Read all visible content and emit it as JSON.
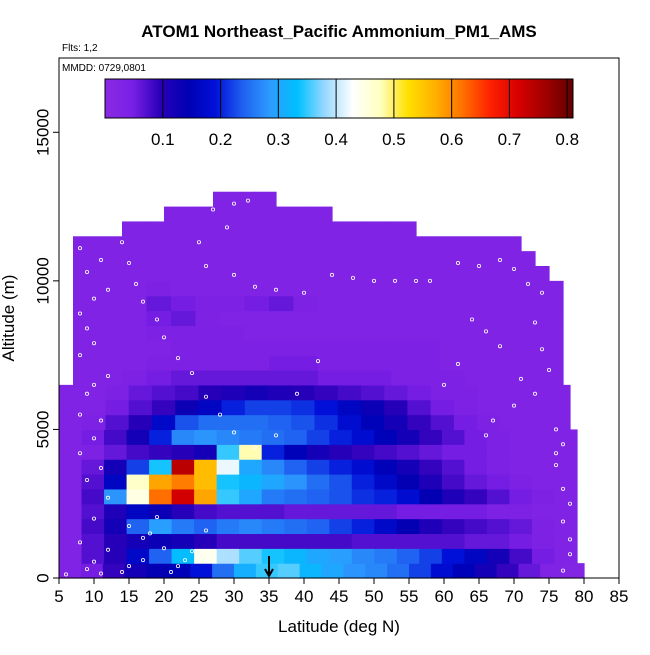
{
  "chart_data": {
    "type": "heatmap",
    "title": "ATOM1 Northeast_Pacific Ammonium_PM1_AMS",
    "subtitle_flights": "Flts: 1,2",
    "subtitle_dates": "MMDD: 0729,0801",
    "xlabel": "Latitude (deg N)",
    "ylabel": "Altitude (m)",
    "xlim": [
      5,
      85
    ],
    "ylim": [
      0,
      17500
    ],
    "x_ticks": [
      "5",
      "10",
      "15",
      "20",
      "25",
      "30",
      "35",
      "40",
      "45",
      "50",
      "55",
      "60",
      "65",
      "70",
      "75",
      "80",
      "85"
    ],
    "y_ticks": [
      "0",
      "5000",
      "10000",
      "15000"
    ],
    "colorbar": {
      "range": [
        0,
        0.81
      ],
      "tick_labels": [
        "0.1",
        "0.2",
        "0.3",
        "0.4",
        "0.5",
        "0.6",
        "0.7",
        "0.8"
      ],
      "stops": [
        "#8a2be2",
        "#7a1fe6",
        "#2a00b8",
        "#0000b4",
        "#0010d8",
        "#2060f0",
        "#2c9cff",
        "#00c0ff",
        "#9ad8ff",
        "#ffffff",
        "#ffffc0",
        "#ffe000",
        "#ffb000",
        "#ff7000",
        "#ff2000",
        "#d80000",
        "#a00000",
        "#600000"
      ]
    },
    "grid": false,
    "arrow_marker_latitude": 35,
    "cells": [
      {
        "lat_start": 5,
        "lat_end": 80,
        "alt_start": 0,
        "alt_end": 500,
        "values": [
          0.03,
          0.05,
          0.09,
          0.12,
          0.14,
          0.15,
          0.19,
          0.25,
          0.31,
          0.35,
          0.36,
          0.32,
          0.3,
          0.28,
          0.27,
          0.25,
          0.22,
          0.18,
          0.15,
          0.12,
          0.09,
          0.06,
          0.03,
          0.02
        ]
      },
      {
        "lat_start": 5,
        "lat_end": 79,
        "alt_start": 500,
        "alt_end": 1000,
        "values": [
          0.03,
          0.07,
          0.1,
          0.17,
          0.24,
          0.33,
          0.44,
          0.39,
          0.36,
          0.34,
          0.32,
          0.3,
          0.29,
          0.27,
          0.26,
          0.24,
          0.22,
          0.19,
          0.16,
          0.12,
          0.08,
          0.05,
          0.03
        ]
      },
      {
        "lat_start": 5,
        "lat_end": 79,
        "alt_start": 1000,
        "alt_end": 1500,
        "values": [
          0.03,
          0.07,
          0.1,
          0.12,
          0.13,
          0.12,
          0.1,
          0.08,
          0.08,
          0.08,
          0.08,
          0.08,
          0.08,
          0.07,
          0.07,
          0.07,
          0.07,
          0.07,
          0.06,
          0.06,
          0.05,
          0.04,
          0.03
        ]
      },
      {
        "lat_start": 5,
        "lat_end": 79,
        "alt_start": 1500,
        "alt_end": 2000,
        "values": [
          0.03,
          0.08,
          0.12,
          0.24,
          0.29,
          0.26,
          0.24,
          0.26,
          0.27,
          0.26,
          0.25,
          0.24,
          0.22,
          0.2,
          0.17,
          0.14,
          0.11,
          0.09,
          0.08,
          0.07,
          0.06,
          0.04,
          0.03
        ]
      },
      {
        "lat_start": 5,
        "lat_end": 79,
        "alt_start": 2000,
        "alt_end": 2500,
        "values": [
          0.03,
          0.07,
          0.11,
          0.16,
          0.13,
          0.1,
          0.08,
          0.07,
          0.07,
          0.07,
          0.06,
          0.06,
          0.06,
          0.06,
          0.06,
          0.05,
          0.05,
          0.05,
          0.05,
          0.04,
          0.04,
          0.03,
          0.03
        ]
      },
      {
        "lat_start": 5,
        "lat_end": 79,
        "alt_start": 2500,
        "alt_end": 3000,
        "values": [
          0.03,
          0.08,
          0.28,
          0.45,
          0.62,
          0.72,
          0.58,
          0.35,
          0.3,
          0.26,
          0.25,
          0.24,
          0.23,
          0.21,
          0.2,
          0.18,
          0.14,
          0.11,
          0.09,
          0.07,
          0.05,
          0.04,
          0.03
        ]
      },
      {
        "lat_start": 5,
        "lat_end": 79,
        "alt_start": 3000,
        "alt_end": 3500,
        "values": [
          0.03,
          0.07,
          0.16,
          0.47,
          0.58,
          0.61,
          0.56,
          0.34,
          0.32,
          0.3,
          0.28,
          0.25,
          0.23,
          0.2,
          0.17,
          0.14,
          0.11,
          0.08,
          0.06,
          0.05,
          0.04,
          0.03,
          0.03
        ]
      },
      {
        "lat_start": 5,
        "lat_end": 79,
        "alt_start": 3500,
        "alt_end": 4000,
        "values": [
          0.03,
          0.06,
          0.12,
          0.22,
          0.34,
          0.74,
          0.56,
          0.42,
          0.3,
          0.27,
          0.24,
          0.22,
          0.2,
          0.18,
          0.15,
          0.12,
          0.09,
          0.07,
          0.05,
          0.04,
          0.03,
          0.03,
          0.03
        ]
      },
      {
        "lat_start": 5,
        "lat_end": 79,
        "alt_start": 4000,
        "alt_end": 4500,
        "values": [
          0.03,
          0.04,
          0.06,
          0.08,
          0.09,
          0.1,
          0.12,
          0.35,
          0.48,
          0.2,
          0.15,
          0.12,
          0.1,
          0.09,
          0.08,
          0.07,
          0.06,
          0.05,
          0.05,
          0.04,
          0.03,
          0.03,
          0.03
        ]
      },
      {
        "lat_start": 5,
        "lat_end": 79,
        "alt_start": 4500,
        "alt_end": 5000,
        "values": [
          0.03,
          0.05,
          0.08,
          0.12,
          0.2,
          0.27,
          0.28,
          0.27,
          0.26,
          0.25,
          0.24,
          0.22,
          0.2,
          0.18,
          0.15,
          0.12,
          0.09,
          0.07,
          0.05,
          0.04,
          0.03,
          0.03,
          0.03
        ]
      },
      {
        "lat_start": 5,
        "lat_end": 78,
        "alt_start": 5000,
        "alt_end": 5500,
        "values": [
          0.03,
          0.04,
          0.07,
          0.1,
          0.17,
          0.23,
          0.25,
          0.25,
          0.25,
          0.24,
          0.23,
          0.21,
          0.18,
          0.15,
          0.12,
          0.09,
          0.07,
          0.05,
          0.04,
          0.03,
          0.03,
          0.03
        ]
      },
      {
        "lat_start": 5,
        "lat_end": 78,
        "alt_start": 5500,
        "alt_end": 6000,
        "values": [
          0.03,
          0.03,
          0.05,
          0.07,
          0.09,
          0.13,
          0.16,
          0.2,
          0.22,
          0.22,
          0.21,
          0.19,
          0.16,
          0.13,
          0.1,
          0.07,
          0.05,
          0.04,
          0.03,
          0.03,
          0.03,
          0.03
        ]
      },
      {
        "lat_start": 5,
        "lat_end": 78,
        "alt_start": 6000,
        "alt_end": 6500,
        "values": [
          0.03,
          0.03,
          0.04,
          0.06,
          0.07,
          0.08,
          0.1,
          0.11,
          0.12,
          0.11,
          0.1,
          0.09,
          0.08,
          0.07,
          0.06,
          0.05,
          0.04,
          0.04,
          0.03,
          0.03,
          0.03,
          0.03
        ]
      },
      {
        "lat_start": 7,
        "lat_end": 77,
        "alt_start": 6500,
        "alt_end": 7000,
        "values": [
          0.03,
          0.03,
          0.04,
          0.05,
          0.06,
          0.06,
          0.06,
          0.06,
          0.06,
          0.06,
          0.05,
          0.05,
          0.05,
          0.04,
          0.04,
          0.04,
          0.03,
          0.03,
          0.03,
          0.03
        ]
      },
      {
        "lat_start": 7,
        "lat_end": 77,
        "alt_start": 7000,
        "alt_end": 7500,
        "values": [
          0.03,
          0.03,
          0.03,
          0.04,
          0.04,
          0.04,
          0.04,
          0.04,
          0.05,
          0.05,
          0.04,
          0.04,
          0.04,
          0.04,
          0.04,
          0.03,
          0.03,
          0.03,
          0.03,
          0.03
        ]
      },
      {
        "lat_start": 7,
        "lat_end": 77,
        "alt_start": 7500,
        "alt_end": 8000,
        "values": [
          0.03,
          0.03,
          0.03,
          0.03,
          0.04,
          0.04,
          0.04,
          0.04,
          0.04,
          0.04,
          0.04,
          0.04,
          0.04,
          0.04,
          0.04,
          0.03,
          0.03,
          0.03,
          0.03,
          0.03
        ]
      },
      {
        "lat_start": 7,
        "lat_end": 77,
        "alt_start": 8000,
        "alt_end": 8500,
        "values": [
          0.03,
          0.03,
          0.03,
          0.04,
          0.04,
          0.04,
          0.04,
          0.03,
          0.03,
          0.03,
          0.03,
          0.03,
          0.03,
          0.03,
          0.03,
          0.03,
          0.03,
          0.03,
          0.03,
          0.03
        ]
      },
      {
        "lat_start": 7,
        "lat_end": 77,
        "alt_start": 8500,
        "alt_end": 9000,
        "values": [
          0.03,
          0.03,
          0.03,
          0.05,
          0.06,
          0.04,
          0.03,
          0.03,
          0.03,
          0.03,
          0.03,
          0.03,
          0.03,
          0.03,
          0.03,
          0.03,
          0.03,
          0.03,
          0.03,
          0.03
        ]
      },
      {
        "lat_start": 7,
        "lat_end": 77,
        "alt_start": 9000,
        "alt_end": 9500,
        "values": [
          0.03,
          0.03,
          0.03,
          0.06,
          0.05,
          0.04,
          0.04,
          0.05,
          0.06,
          0.04,
          0.03,
          0.03,
          0.03,
          0.03,
          0.03,
          0.03,
          0.03,
          0.03,
          0.03,
          0.03
        ]
      },
      {
        "lat_start": 7,
        "lat_end": 77,
        "alt_start": 9500,
        "alt_end": 10000,
        "values": [
          0.03,
          0.03,
          0.03,
          0.04,
          0.03,
          0.03,
          0.03,
          0.03,
          0.03,
          0.03,
          0.03,
          0.03,
          0.03,
          0.03,
          0.03,
          0.03,
          0.03,
          0.03,
          0.03,
          0.03
        ]
      },
      {
        "lat_start": 7,
        "lat_end": 75,
        "alt_start": 10000,
        "alt_end": 10500,
        "values": [
          0.03,
          0.03,
          0.03,
          0.03,
          0.03,
          0.03,
          0.03,
          0.03,
          0.03,
          0.03,
          0.03,
          0.03,
          0.03,
          0.03,
          0.03,
          0.03,
          0.03
        ]
      },
      {
        "lat_start": 7,
        "lat_end": 73,
        "alt_start": 10500,
        "alt_end": 11000,
        "values": [
          0.03,
          0.03,
          0.03,
          0.03,
          0.03,
          0.03,
          0.03,
          0.03,
          0.03,
          0.03,
          0.03,
          0.03,
          0.03,
          0.03,
          0.03,
          0.03
        ]
      },
      {
        "lat_start": 7,
        "lat_end": 71,
        "alt_start": 11000,
        "alt_end": 11500,
        "values": [
          0.03,
          0.03,
          0.03,
          0.03,
          0.03,
          0.03,
          0.03,
          0.03,
          0.03,
          0.03,
          0.03,
          0.03,
          0.03,
          0.03,
          0.03,
          0.03
        ]
      },
      {
        "lat_start": 14,
        "lat_end": 56,
        "alt_start": 11500,
        "alt_end": 12000,
        "values": [
          0.03,
          0.03,
          0.03,
          0.03,
          0.03,
          0.03,
          0.03,
          0.03,
          0.03,
          0.03,
          0.03
        ]
      },
      {
        "lat_start": 20,
        "lat_end": 44,
        "alt_start": 12000,
        "alt_end": 12500,
        "values": [
          0.03,
          0.03,
          0.03,
          0.03,
          0.03,
          0.03
        ]
      },
      {
        "lat_start": 27,
        "lat_end": 36,
        "alt_start": 12500,
        "alt_end": 13000,
        "values": [
          0.03,
          0.03,
          0.03
        ]
      }
    ],
    "sample_points": [
      {
        "lat": 6,
        "alt": 120
      },
      {
        "lat": 9,
        "alt": 300
      },
      {
        "lat": 11,
        "alt": 150
      },
      {
        "lat": 10,
        "alt": 550
      },
      {
        "lat": 12,
        "alt": 950
      },
      {
        "lat": 17,
        "alt": 1350
      },
      {
        "lat": 18,
        "alt": 1500
      },
      {
        "lat": 19,
        "alt": 2050
      },
      {
        "lat": 15,
        "alt": 1750
      },
      {
        "lat": 8,
        "alt": 1200
      },
      {
        "lat": 10,
        "alt": 2000
      },
      {
        "lat": 12,
        "alt": 2700
      },
      {
        "lat": 9,
        "alt": 3300
      },
      {
        "lat": 11,
        "alt": 3700
      },
      {
        "lat": 8,
        "alt": 4200
      },
      {
        "lat": 10,
        "alt": 4700
      },
      {
        "lat": 11,
        "alt": 5300
      },
      {
        "lat": 8,
        "alt": 5500
      },
      {
        "lat": 9,
        "alt": 6200
      },
      {
        "lat": 10,
        "alt": 6500
      },
      {
        "lat": 12,
        "alt": 6800
      },
      {
        "lat": 8,
        "alt": 7500
      },
      {
        "lat": 10,
        "alt": 7900
      },
      {
        "lat": 9,
        "alt": 8400
      },
      {
        "lat": 8,
        "alt": 8900
      },
      {
        "lat": 10,
        "alt": 9400
      },
      {
        "lat": 12,
        "alt": 9700
      },
      {
        "lat": 9,
        "alt": 10300
      },
      {
        "lat": 11,
        "alt": 10700
      },
      {
        "lat": 8,
        "alt": 11100
      },
      {
        "lat": 14,
        "alt": 11300
      },
      {
        "lat": 15,
        "alt": 10600
      },
      {
        "lat": 16,
        "alt": 9900
      },
      {
        "lat": 17,
        "alt": 9300
      },
      {
        "lat": 19,
        "alt": 8700
      },
      {
        "lat": 20,
        "alt": 8100
      },
      {
        "lat": 22,
        "alt": 7400
      },
      {
        "lat": 24,
        "alt": 6900
      },
      {
        "lat": 26,
        "alt": 6100
      },
      {
        "lat": 28,
        "alt": 5500
      },
      {
        "lat": 30,
        "alt": 4900
      },
      {
        "lat": 33,
        "alt": 4400
      },
      {
        "lat": 36,
        "alt": 4800
      },
      {
        "lat": 39,
        "alt": 6200
      },
      {
        "lat": 42,
        "alt": 7300
      },
      {
        "lat": 25,
        "alt": 11300
      },
      {
        "lat": 27,
        "alt": 12400
      },
      {
        "lat": 30,
        "alt": 12600
      },
      {
        "lat": 32,
        "alt": 12700
      },
      {
        "lat": 29,
        "alt": 11800
      },
      {
        "lat": 26,
        "alt": 10500
      },
      {
        "lat": 30,
        "alt": 10200
      },
      {
        "lat": 33,
        "alt": 9800
      },
      {
        "lat": 36,
        "alt": 9700
      },
      {
        "lat": 40,
        "alt": 9600
      },
      {
        "lat": 44,
        "alt": 10200
      },
      {
        "lat": 47,
        "alt": 10100
      },
      {
        "lat": 50,
        "alt": 10000
      },
      {
        "lat": 53,
        "alt": 10000
      },
      {
        "lat": 56,
        "alt": 10000
      },
      {
        "lat": 58,
        "alt": 10000
      },
      {
        "lat": 62,
        "alt": 10600
      },
      {
        "lat": 65,
        "alt": 10500
      },
      {
        "lat": 68,
        "alt": 10700
      },
      {
        "lat": 70,
        "alt": 10400
      },
      {
        "lat": 72,
        "alt": 9900
      },
      {
        "lat": 74,
        "alt": 9600
      },
      {
        "lat": 73,
        "alt": 8600
      },
      {
        "lat": 74,
        "alt": 7700
      },
      {
        "lat": 75,
        "alt": 7000
      },
      {
        "lat": 73,
        "alt": 6200
      },
      {
        "lat": 76,
        "alt": 5000
      },
      {
        "lat": 77,
        "alt": 4500
      },
      {
        "lat": 76,
        "alt": 3800
      },
      {
        "lat": 77,
        "alt": 3000
      },
      {
        "lat": 78,
        "alt": 2500
      },
      {
        "lat": 77,
        "alt": 1900
      },
      {
        "lat": 78,
        "alt": 1300
      },
      {
        "lat": 78,
        "alt": 800
      },
      {
        "lat": 77,
        "alt": 250
      },
      {
        "lat": 76,
        "alt": 4200
      },
      {
        "lat": 64,
        "alt": 8700
      },
      {
        "lat": 62,
        "alt": 7200
      },
      {
        "lat": 60,
        "alt": 6500
      },
      {
        "lat": 67,
        "alt": 5300
      },
      {
        "lat": 66,
        "alt": 4800
      },
      {
        "lat": 70,
        "alt": 5800
      },
      {
        "lat": 71,
        "alt": 6700
      },
      {
        "lat": 68,
        "alt": 7800
      },
      {
        "lat": 66,
        "alt": 8300
      },
      {
        "lat": 22,
        "alt": 400
      },
      {
        "lat": 21,
        "alt": 200
      },
      {
        "lat": 23,
        "alt": 600
      },
      {
        "lat": 20,
        "alt": 1000
      },
      {
        "lat": 17,
        "alt": 600
      },
      {
        "lat": 15,
        "alt": 400
      },
      {
        "lat": 14,
        "alt": 200
      },
      {
        "lat": 24,
        "alt": 900
      },
      {
        "lat": 26,
        "alt": 1600
      }
    ]
  }
}
